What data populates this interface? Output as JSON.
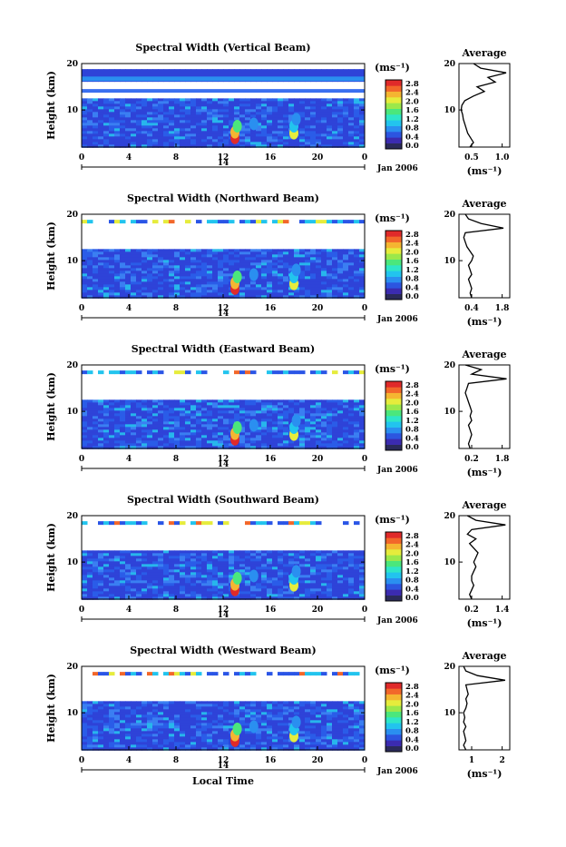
{
  "chart_data": [
    {
      "type": "heatmap",
      "title": "Spectral Width (Vertical Beam)",
      "ylabel": "Height (km)",
      "xlim": [
        0,
        24
      ],
      "ylim": [
        2,
        20
      ],
      "xticks": [
        "0",
        "4",
        "8",
        "12",
        "16",
        "20",
        "0"
      ],
      "yticks": [
        "10",
        "20"
      ],
      "date_label": "14",
      "month_label": "Jan 2006",
      "colorbar": {
        "unit": "(ms⁻¹)",
        "ticks": [
          "0.0",
          "0.4",
          "0.8",
          "1.2",
          "1.6",
          "2.0",
          "2.4",
          "2.8"
        ]
      },
      "average": {
        "title": "Average",
        "xlabel": "(ms⁻¹)",
        "xlim": [
          0.3,
          1.0
        ],
        "xticks": [
          "0.5",
          "1.0"
        ],
        "yticks": [
          "10",
          "20"
        ],
        "profile": [
          [
            0.45,
            2
          ],
          [
            0.5,
            3
          ],
          [
            0.46,
            4
          ],
          [
            0.42,
            5
          ],
          [
            0.4,
            6
          ],
          [
            0.38,
            7
          ],
          [
            0.36,
            8
          ],
          [
            0.35,
            9
          ],
          [
            0.33,
            10
          ],
          [
            0.34,
            11
          ],
          [
            0.38,
            12
          ],
          [
            0.5,
            13
          ],
          [
            0.65,
            14
          ],
          [
            0.55,
            15
          ],
          [
            0.8,
            16
          ],
          [
            0.7,
            17
          ],
          [
            0.95,
            18
          ],
          [
            0.6,
            19
          ],
          [
            0.5,
            20
          ]
        ]
      }
    },
    {
      "type": "heatmap",
      "title": "Spectral Width (Northward Beam)",
      "ylabel": "Height (km)",
      "xlim": [
        0,
        24
      ],
      "ylim": [
        2,
        20
      ],
      "xticks": [
        "0",
        "4",
        "8",
        "12",
        "16",
        "20",
        "0"
      ],
      "yticks": [
        "10",
        "20"
      ],
      "date_label": "14",
      "month_label": "Jan 2006",
      "colorbar": {
        "unit": "(ms⁻¹)",
        "ticks": [
          "0.0",
          "0.4",
          "0.8",
          "1.2",
          "1.6",
          "2.0",
          "2.4",
          "2.8"
        ]
      },
      "average": {
        "title": "Average",
        "xlabel": "(ms⁻¹)",
        "xlim": [
          0.2,
          1.8
        ],
        "xticks": [
          "0.4",
          "1.8"
        ],
        "yticks": [
          "10",
          "20"
        ],
        "profile": [
          [
            0.6,
            2
          ],
          [
            0.55,
            3
          ],
          [
            0.6,
            4
          ],
          [
            0.55,
            5
          ],
          [
            0.5,
            6
          ],
          [
            0.6,
            7
          ],
          [
            0.55,
            8
          ],
          [
            0.5,
            9
          ],
          [
            0.6,
            10
          ],
          [
            0.65,
            11
          ],
          [
            0.55,
            12
          ],
          [
            0.45,
            13
          ],
          [
            0.4,
            14
          ],
          [
            0.35,
            15
          ],
          [
            0.4,
            16
          ],
          [
            1.6,
            17
          ],
          [
            0.9,
            18
          ],
          [
            0.5,
            19
          ],
          [
            0.4,
            20
          ]
        ]
      }
    },
    {
      "type": "heatmap",
      "title": "Spectral Width (Eastward Beam)",
      "ylabel": "Height (km)",
      "xlim": [
        0,
        24
      ],
      "ylim": [
        2,
        20
      ],
      "xticks": [
        "0",
        "4",
        "8",
        "12",
        "16",
        "20",
        "0"
      ],
      "yticks": [
        "10",
        "20"
      ],
      "date_label": "14",
      "month_label": "Jan 2006",
      "colorbar": {
        "unit": "(ms⁻¹)",
        "ticks": [
          "0.0",
          "0.4",
          "0.8",
          "1.2",
          "1.6",
          "2.0",
          "2.4",
          "2.8"
        ]
      },
      "average": {
        "title": "Average",
        "xlabel": "(ms⁻¹)",
        "xlim": [
          0.2,
          1.8
        ],
        "xticks": [
          "0.2",
          "1.8"
        ],
        "yticks": [
          "10",
          "20"
        ],
        "profile": [
          [
            0.55,
            2
          ],
          [
            0.5,
            3
          ],
          [
            0.55,
            4
          ],
          [
            0.6,
            5
          ],
          [
            0.55,
            6
          ],
          [
            0.5,
            7
          ],
          [
            0.6,
            8
          ],
          [
            0.55,
            9
          ],
          [
            0.6,
            10
          ],
          [
            0.55,
            11
          ],
          [
            0.5,
            12
          ],
          [
            0.45,
            13
          ],
          [
            0.4,
            14
          ],
          [
            0.45,
            15
          ],
          [
            0.5,
            16
          ],
          [
            1.7,
            17
          ],
          [
            0.6,
            18
          ],
          [
            0.9,
            19
          ],
          [
            0.4,
            20
          ]
        ]
      }
    },
    {
      "type": "heatmap",
      "title": "Spectral Width (Southward Beam)",
      "ylabel": "Height (km)",
      "xlim": [
        0,
        24
      ],
      "ylim": [
        2,
        20
      ],
      "xticks": [
        "0",
        "4",
        "8",
        "12",
        "16",
        "20",
        "0"
      ],
      "yticks": [
        "10",
        "20"
      ],
      "date_label": "14",
      "month_label": "Jan 2006",
      "colorbar": {
        "unit": "(ms⁻¹)",
        "ticks": [
          "0.0",
          "0.4",
          "0.8",
          "1.2",
          "1.6",
          "2.0",
          "2.4",
          "2.8"
        ]
      },
      "average": {
        "title": "Average",
        "xlabel": "(ms⁻¹)",
        "xlim": [
          0.2,
          1.4
        ],
        "xticks": [
          "0.2",
          "1.4"
        ],
        "yticks": [
          "10",
          "20"
        ],
        "profile": [
          [
            0.5,
            2
          ],
          [
            0.45,
            3
          ],
          [
            0.5,
            4
          ],
          [
            0.55,
            5
          ],
          [
            0.5,
            6
          ],
          [
            0.5,
            7
          ],
          [
            0.55,
            8
          ],
          [
            0.6,
            9
          ],
          [
            0.55,
            10
          ],
          [
            0.6,
            11
          ],
          [
            0.65,
            12
          ],
          [
            0.55,
            13
          ],
          [
            0.45,
            14
          ],
          [
            0.6,
            15
          ],
          [
            0.4,
            16
          ],
          [
            0.5,
            17
          ],
          [
            1.3,
            18
          ],
          [
            0.6,
            19
          ],
          [
            0.4,
            20
          ]
        ]
      }
    },
    {
      "type": "heatmap",
      "title": "Spectral Width (Westward Beam)",
      "ylabel": "Height (km)",
      "xlabel": "Local Time",
      "xlim": [
        0,
        24
      ],
      "ylim": [
        2,
        20
      ],
      "xticks": [
        "0",
        "4",
        "8",
        "12",
        "16",
        "20",
        "0"
      ],
      "yticks": [
        "10",
        "20"
      ],
      "date_label": "14",
      "month_label": "Jan 2006",
      "colorbar": {
        "unit": "(ms⁻¹)",
        "ticks": [
          "0.0",
          "0.4",
          "0.8",
          "1.2",
          "1.6",
          "2.0",
          "2.4",
          "2.8"
        ]
      },
      "average": {
        "title": "Average",
        "xlabel": "(ms⁻¹)",
        "xlim": [
          0.4,
          2.6
        ],
        "xticks": [
          "1",
          "2"
        ],
        "yticks": [
          "10",
          "20"
        ],
        "profile": [
          [
            0.7,
            2
          ],
          [
            0.6,
            3
          ],
          [
            0.7,
            4
          ],
          [
            0.65,
            5
          ],
          [
            0.6,
            6
          ],
          [
            0.7,
            7
          ],
          [
            0.6,
            8
          ],
          [
            0.65,
            9
          ],
          [
            0.6,
            10
          ],
          [
            0.7,
            11
          ],
          [
            0.75,
            12
          ],
          [
            0.7,
            13
          ],
          [
            0.8,
            14
          ],
          [
            0.75,
            15
          ],
          [
            0.7,
            16
          ],
          [
            2.4,
            17
          ],
          [
            1.2,
            18
          ],
          [
            0.7,
            19
          ],
          [
            0.6,
            20
          ]
        ]
      }
    }
  ],
  "colors": {
    "colorbar": [
      "#2a2a5a",
      "#3b2bb0",
      "#2c55e0",
      "#2a8ff0",
      "#22c4ee",
      "#2ee6c8",
      "#4be77c",
      "#9ce84a",
      "#e6ec3c",
      "#f5b531",
      "#f2672a",
      "#e02a2a"
    ]
  }
}
